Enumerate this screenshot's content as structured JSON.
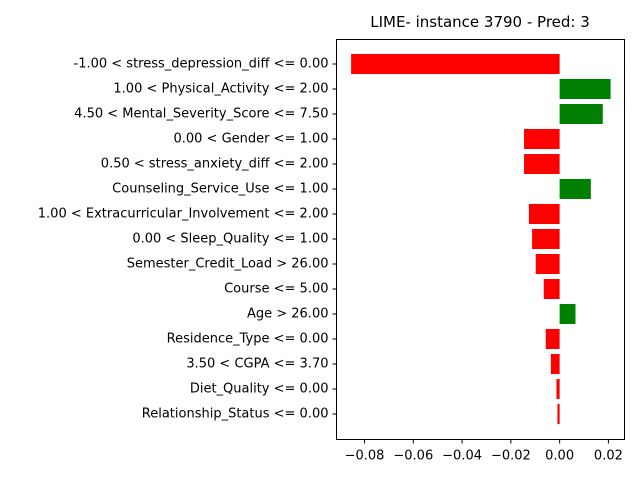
{
  "chart_data": {
    "type": "bar",
    "orientation": "horizontal",
    "title": "LIME- instance 3790 - Pred: 3",
    "xlabel": "",
    "ylabel": "",
    "xlim": [
      -0.0915,
      0.0266
    ],
    "xticks": [
      -0.08,
      -0.06,
      -0.04,
      -0.02,
      0.0,
      0.02
    ],
    "xtick_labels": [
      "−0.08",
      "−0.06",
      "−0.04",
      "−0.02",
      "0.00",
      "0.02"
    ],
    "grid": false,
    "colors": {
      "positive": "#008000",
      "negative": "#ff0000"
    },
    "categories": [
      "-1.00 < stress_depression_diff <= 0.00",
      "1.00 < Physical_Activity <= 2.00",
      "4.50 < Mental_Severity_Score <= 7.50",
      "0.00 < Gender <= 1.00",
      "0.50 < stress_anxiety_diff <= 2.00",
      "Counseling_Service_Use <= 1.00",
      "1.00 < Extracurricular_Involvement <= 2.00",
      "0.00 < Sleep_Quality <= 1.00",
      "Semester_Credit_Load > 26.00",
      "Course <= 5.00",
      "Age > 26.00",
      "Residence_Type <= 0.00",
      "3.50 < CGPA <= 3.70",
      "Diet_Quality <= 0.00",
      "Relationship_Status <= 0.00"
    ],
    "values": [
      -0.0855,
      0.0209,
      0.0177,
      -0.0146,
      -0.0146,
      0.0128,
      -0.0126,
      -0.0113,
      -0.0098,
      -0.0065,
      0.0065,
      -0.0057,
      -0.0036,
      -0.0013,
      -0.0009
    ]
  }
}
